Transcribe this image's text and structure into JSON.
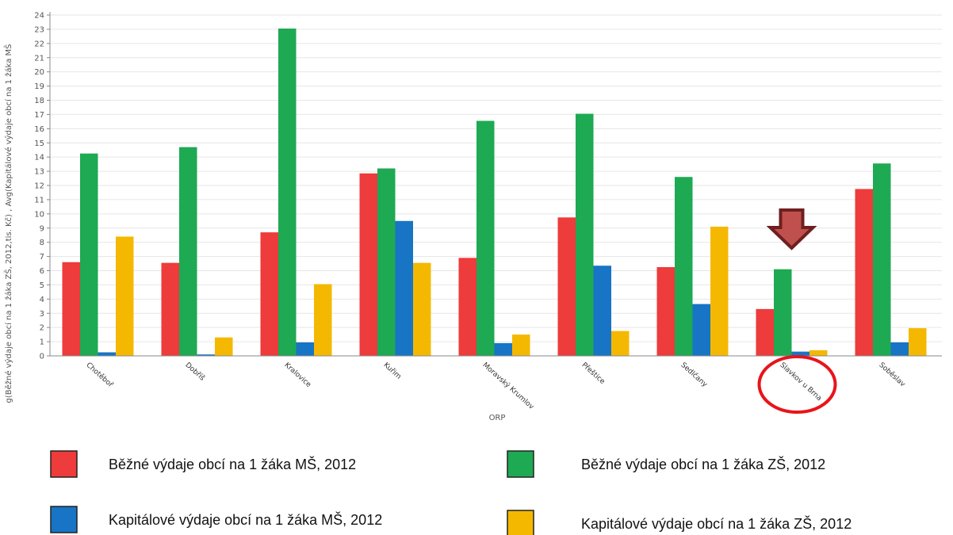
{
  "chart_data": {
    "type": "bar",
    "categories": [
      "Chotěboř",
      "Dobříš",
      "Kralovice",
      "Kuřim",
      "Moravský Krumlov",
      "Přeštice",
      "Sedlčany",
      "Slavkov u Brna",
      "Soběslav"
    ],
    "series": [
      {
        "name": "Běžné výdaje obcí na 1 žáka MŠ, 2012",
        "color": "#ee3b3b",
        "values": [
          6.6,
          6.55,
          8.7,
          12.85,
          6.9,
          9.75,
          6.25,
          3.3,
          11.75
        ]
      },
      {
        "name": "Běžné výdaje obcí na 1 žáka ZŠ, 2012",
        "color": "#1ea953",
        "values": [
          14.25,
          14.7,
          23.05,
          13.2,
          16.55,
          17.05,
          12.6,
          6.1,
          13.55
        ]
      },
      {
        "name": "Kapitálové výdaje obcí na 1 žáka MŠ, 2012",
        "color": "#1874c5",
        "values": [
          0.25,
          0.1,
          0.95,
          9.5,
          0.9,
          6.35,
          3.65,
          0.3,
          0.95
        ]
      },
      {
        "name": "Kapitálové výdaje obcí na 1 žáka ZŠ, 2012",
        "color": "#f5b800",
        "values": [
          8.4,
          1.3,
          5.05,
          6.55,
          1.5,
          1.75,
          9.1,
          0.4,
          1.95
        ]
      }
    ],
    "xlabel": "ORP",
    "ylabel": "g(Běžné výdaje obcí na 1 žáka ZŠ, 2012,tis. Kč) , Avg(Kapitálové výdaje obcí na 1 žáka MŠ",
    "ylim": [
      0,
      24
    ],
    "yticks": [
      0,
      1,
      2,
      3,
      4,
      5,
      6,
      7,
      8,
      9,
      10,
      11,
      12,
      13,
      14,
      15,
      16,
      17,
      18,
      19,
      20,
      21,
      22,
      23,
      24
    ],
    "grid": true,
    "legend": "bottom",
    "annotations": [
      {
        "type": "arrow-down",
        "category": "Slavkov u Brna",
        "color": "#c0504d"
      },
      {
        "type": "circle",
        "category": "Slavkov u Brna",
        "color": "#e8141b"
      }
    ]
  }
}
